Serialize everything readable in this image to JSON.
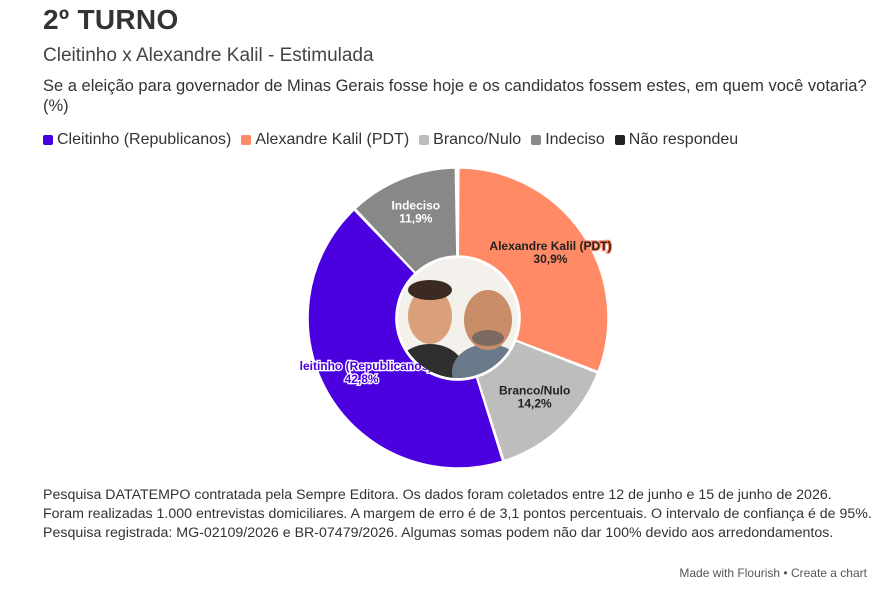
{
  "header": {
    "title": "2º TURNO",
    "subtitle": "Cleitinho x Alexandre Kalil - Estimulada",
    "question": "Se a eleição para governador de Minas Gerais fosse hoje e os candidatos fossem estes, em quem você votaria? (%)"
  },
  "legend": [
    {
      "label": "Cleitinho (Republicanos)",
      "color": "#4b00e0"
    },
    {
      "label": "Alexandre Kalil (PDT)",
      "color": "#ff8a65"
    },
    {
      "label": "Branco/Nulo",
      "color": "#bdbdbd"
    },
    {
      "label": "Indeciso",
      "color": "#888888"
    },
    {
      "label": "Não respondeu",
      "color": "#222222"
    }
  ],
  "chart_data": {
    "type": "pie",
    "variant": "donut",
    "center_image": "candidate-photos",
    "slices": [
      {
        "label": "Alexandre Kalil (PDT)",
        "value": 30.9,
        "display": "30,9%",
        "color": "#ff8a65"
      },
      {
        "label": "Branco/Nulo",
        "value": 14.2,
        "display": "14,2%",
        "color": "#bdbdbd"
      },
      {
        "label": "Cleitinho (Republicanos)",
        "value": 42.8,
        "display": "42,8%",
        "color": "#4b00e0"
      },
      {
        "label": "Indeciso",
        "value": 11.9,
        "display": "11,9%",
        "color": "#888888"
      },
      {
        "label": "Não respondeu",
        "value": 0.2,
        "display": "",
        "color": "#222222"
      }
    ]
  },
  "footer": {
    "note": "Pesquisa DATATEMPO contratada pela Sempre Editora. Os dados foram coletados entre 12 de junho e 15 de junho de 2026. Foram realizadas 1.000 entrevistas domiciliares. A margem de erro é de 3,1 pontos percentuais. O intervalo de confiança é de 95%. Pesquisa registrada: MG-02109/2026 e BR-07479/2026. Algumas somas podem não dar 100% devido aos arredondamentos.",
    "credit": "Made with Flourish • Create a chart"
  }
}
